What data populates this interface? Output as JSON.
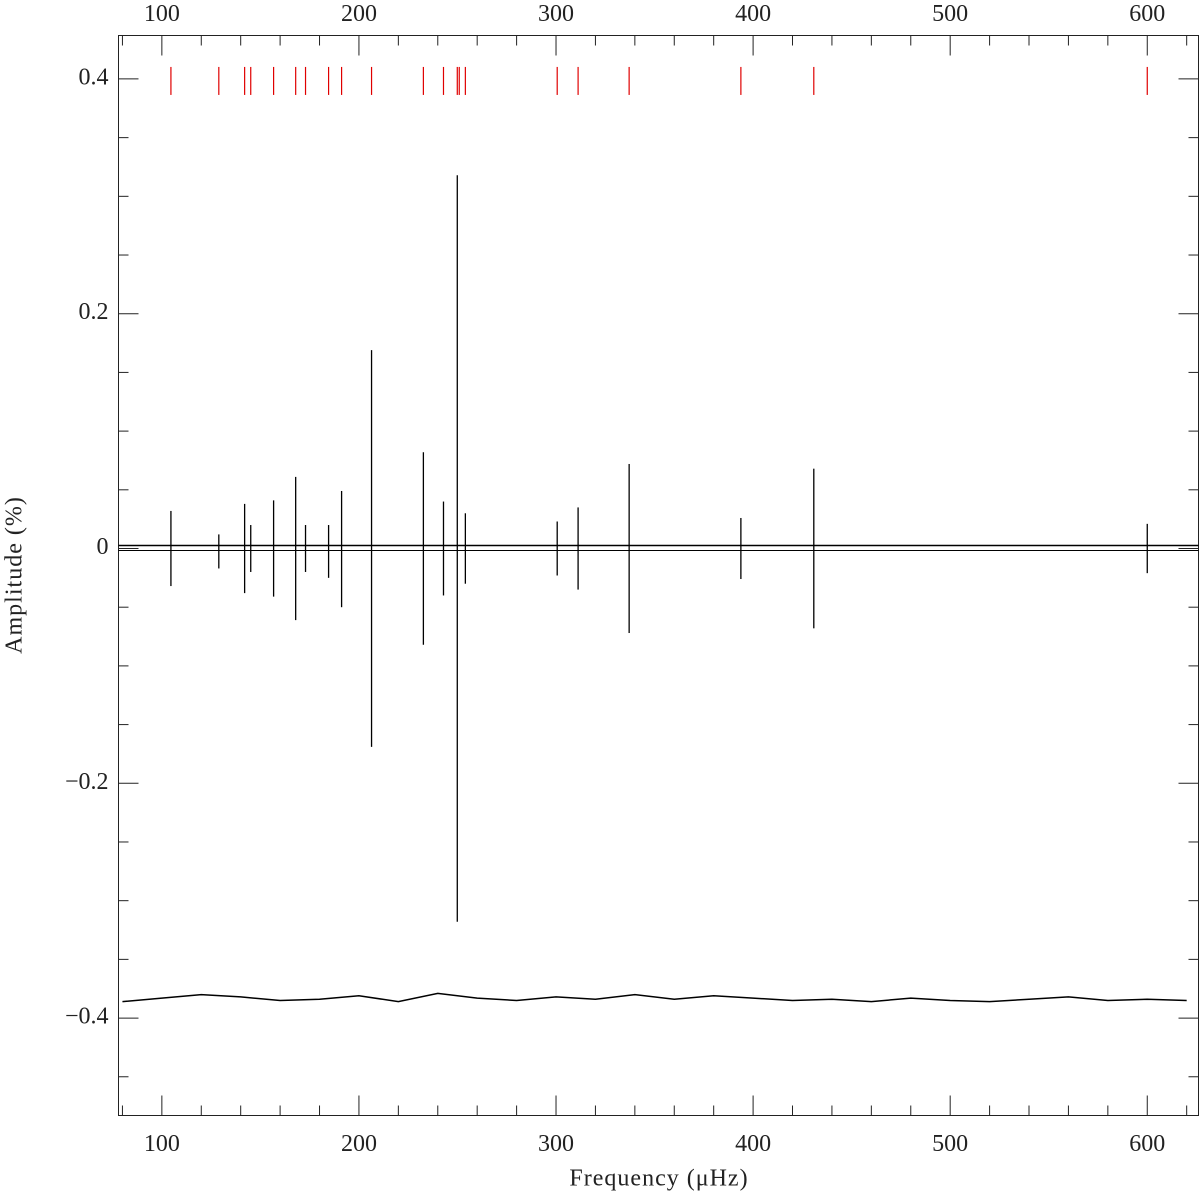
{
  "chart_data": {
    "type": "stem",
    "xlabel": "Frequency (μHz)",
    "ylabel": "Amplitude (%)",
    "xlim": [
      78,
      626
    ],
    "ylim": [
      -0.483,
      0.437
    ],
    "xticks": [
      100,
      200,
      300,
      400,
      500,
      600
    ],
    "yticks": [
      {
        "value": -0.4,
        "label": "−0.4"
      },
      {
        "value": -0.2,
        "label": "−0.2"
      },
      0,
      0.2,
      0.4
    ],
    "xminorticks": [
      80,
      120,
      140,
      160,
      180,
      220,
      240,
      260,
      280,
      320,
      340,
      360,
      380,
      420,
      440,
      460,
      480,
      520,
      540,
      560,
      580,
      620
    ],
    "yminorticks": [
      -0.45,
      -0.35,
      -0.3,
      -0.25,
      -0.15,
      -0.1,
      -0.05,
      0.05,
      0.1,
      0.15,
      0.25,
      0.3,
      0.35
    ],
    "line_color": "#000000",
    "markers": {
      "color": "#e00000",
      "y": 0.4,
      "x": [
        104.6,
        128.9,
        142.0,
        145.1,
        156.7,
        167.9,
        172.9,
        184.6,
        191.2,
        206.4,
        232.7,
        242.9,
        249.9,
        250.9,
        254.0,
        300.6,
        311.2,
        337.1,
        393.8,
        430.8,
        600.0
      ]
    },
    "observed": {
      "x": [
        104.6,
        128.9,
        142.0,
        145.1,
        156.7,
        167.9,
        172.9,
        184.6,
        191.2,
        206.4,
        232.7,
        242.9,
        249.9,
        254.0,
        300.6,
        311.2,
        337.1,
        393.8,
        430.8,
        600.0
      ],
      "values": [
        0.032,
        0.012,
        0.038,
        0.02,
        0.041,
        0.061,
        0.02,
        0.02,
        0.049,
        0.169,
        0.082,
        0.04,
        0.318,
        0.03,
        0.023,
        0.035,
        0.072,
        0.026,
        0.068,
        0.021
      ]
    },
    "model": {
      "x": [
        104.6,
        128.9,
        142.0,
        145.1,
        156.7,
        167.9,
        172.9,
        184.6,
        191.2,
        206.4,
        232.7,
        242.9,
        249.9,
        254.0,
        300.6,
        311.2,
        337.1,
        393.8,
        430.8,
        600.0
      ],
      "values": [
        -0.032,
        -0.017,
        -0.038,
        -0.02,
        -0.041,
        -0.061,
        -0.02,
        -0.025,
        -0.05,
        -0.169,
        -0.082,
        -0.04,
        -0.318,
        -0.03,
        -0.023,
        -0.035,
        -0.072,
        -0.026,
        -0.068,
        -0.021
      ]
    },
    "residual": {
      "x": [
        80,
        100,
        120,
        140,
        160,
        180,
        200,
        220,
        240,
        260,
        280,
        300,
        320,
        340,
        360,
        380,
        400,
        420,
        440,
        460,
        480,
        500,
        520,
        540,
        560,
        580,
        600,
        620
      ],
      "values": [
        -0.386,
        -0.383,
        -0.38,
        -0.382,
        -0.385,
        -0.384,
        -0.381,
        -0.386,
        -0.379,
        -0.383,
        -0.385,
        -0.382,
        -0.384,
        -0.38,
        -0.384,
        -0.381,
        -0.383,
        -0.385,
        -0.384,
        -0.386,
        -0.383,
        -0.385,
        -0.386,
        -0.384,
        -0.382,
        -0.385,
        -0.384,
        -0.385
      ]
    }
  }
}
